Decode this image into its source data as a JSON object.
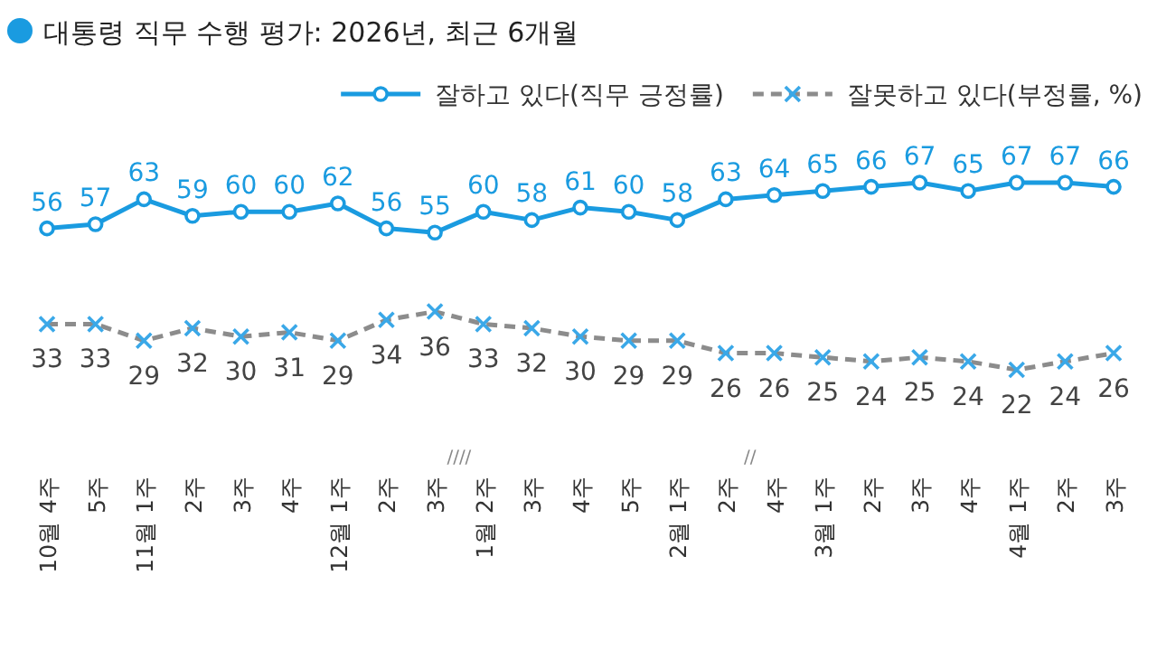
{
  "chart_data": {
    "type": "line",
    "title": "대통령 직무 수행 평가: 2026년, 최근 6개월",
    "categories": [
      "10월 4주",
      "5주",
      "11월 1주",
      "2주",
      "3주",
      "4주",
      "12월 1주",
      "2주",
      "3주",
      "1월 2주",
      "3주",
      "4주",
      "5주",
      "2월 1주",
      "2주",
      "4주",
      "3월 1주",
      "2주",
      "3주",
      "4주",
      "4월 1주",
      "2주",
      "3주"
    ],
    "series": [
      {
        "name": "잘하고 있다(직무 긍정률)",
        "color": "#1a9be0",
        "marker": "circle",
        "line_style": "solid",
        "values": [
          56,
          57,
          63,
          59,
          60,
          60,
          62,
          56,
          55,
          60,
          58,
          61,
          60,
          58,
          63,
          64,
          65,
          66,
          67,
          65,
          67,
          67,
          66
        ]
      },
      {
        "name": "잘못하고 있다(부정률, %)",
        "color": "#8c8c8c",
        "marker": "cross",
        "line_style": "dashed",
        "values": [
          33,
          33,
          29,
          32,
          30,
          31,
          29,
          34,
          36,
          33,
          32,
          30,
          29,
          29,
          26,
          26,
          25,
          24,
          25,
          24,
          22,
          24,
          26
        ]
      }
    ],
    "annotations": [
      "////",
      "//"
    ],
    "data_labels": true,
    "legend": "top right"
  }
}
